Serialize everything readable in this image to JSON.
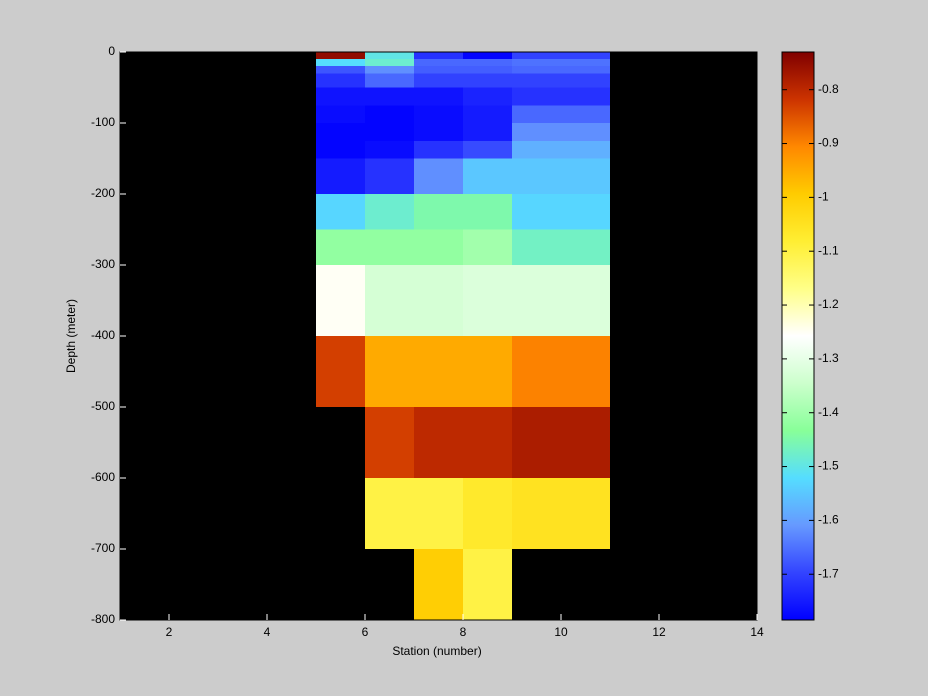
{
  "chart_data": {
    "type": "heatmap",
    "x_label": "Station (number)",
    "y_label": "Depth (meter)",
    "xlim": [
      1,
      14
    ],
    "xticks": [
      2,
      4,
      6,
      8,
      10,
      12,
      14
    ],
    "ylim": [
      -800,
      0
    ],
    "yticks": [
      0,
      -100,
      -200,
      -300,
      -400,
      -500,
      -600,
      -700,
      -800
    ],
    "x_edges": [
      5,
      6,
      7,
      8,
      9,
      11
    ],
    "y_edges": [
      0,
      -10,
      -20,
      -30,
      -50,
      -75,
      -100,
      -125,
      -150,
      -200,
      -250,
      -300,
      -400,
      -500,
      -600,
      -700,
      -800
    ],
    "values": [
      [
        -0.75,
        -1.5,
        -1.72,
        -1.78,
        -1.7
      ],
      [
        -1.52,
        -1.48,
        -1.66,
        -1.66,
        -1.65
      ],
      [
        -1.68,
        -1.62,
        -1.67,
        -1.67,
        -1.66
      ],
      [
        -1.72,
        -1.66,
        -1.7,
        -1.7,
        -1.7
      ],
      [
        -1.76,
        -1.76,
        -1.76,
        -1.74,
        -1.72
      ],
      [
        -1.77,
        -1.78,
        -1.77,
        -1.75,
        -1.66
      ],
      [
        -1.78,
        -1.78,
        -1.77,
        -1.75,
        -1.62
      ],
      [
        -1.78,
        -1.77,
        -1.72,
        -1.69,
        -1.58
      ],
      [
        -1.75,
        -1.72,
        -1.62,
        -1.55,
        -1.55
      ],
      [
        -1.53,
        -1.48,
        -1.45,
        -1.45,
        -1.53
      ],
      [
        -1.42,
        -1.42,
        -1.42,
        -1.4,
        -1.47
      ],
      [
        -1.25,
        -1.33,
        -1.33,
        -1.32,
        -1.32
      ],
      [
        -0.83,
        -0.95,
        -0.95,
        -0.95,
        -0.9
      ],
      [
        null,
        -0.83,
        -0.8,
        -0.8,
        -0.78
      ],
      [
        null,
        -1.1,
        -1.1,
        -1.07,
        -1.05
      ],
      [
        null,
        null,
        -1.0,
        -1.1,
        null
      ]
    ],
    "clim": [
      -1.785,
      -0.73
    ],
    "cticks": [
      -1.7,
      -1.6,
      -1.5,
      -1.4,
      -1.3,
      -1.2,
      -1.1,
      -1,
      -0.9,
      -0.8
    ],
    "colormap": [
      "#0000ff",
      "#3344ff",
      "#6699ff",
      "#55ddff",
      "#88ff99",
      "#ccffcc",
      "#ffffff",
      "#ffff88",
      "#ffee33",
      "#ffcc00",
      "#ff8800",
      "#cc3300",
      "#800000"
    ],
    "background": "#000000"
  }
}
